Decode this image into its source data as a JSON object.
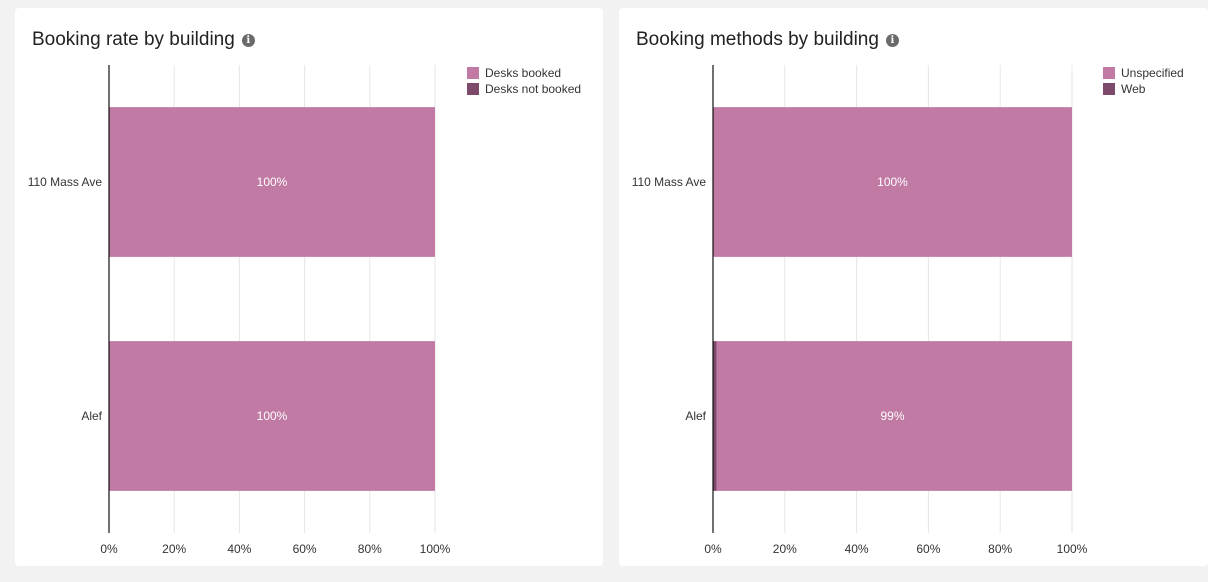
{
  "colors": {
    "primary": "#c07aa3",
    "secondary": "#7e4a6b",
    "grid": "#e6e6e6",
    "axis": "#111111"
  },
  "chart_data": [
    {
      "type": "bar",
      "orientation": "horizontal",
      "stacked": true,
      "title": "Booking rate by building",
      "categories": [
        "110 Mass Ave",
        "Alef"
      ],
      "series": [
        {
          "name": "Desks booked",
          "values": [
            100,
            100
          ],
          "color": "#c07aa3"
        },
        {
          "name": "Desks not booked",
          "values": [
            0,
            0
          ],
          "color": "#7e4a6b"
        }
      ],
      "data_labels": [
        "100%",
        "100%"
      ],
      "xlim": [
        0,
        100
      ],
      "x_ticks": [
        "0%",
        "20%",
        "40%",
        "60%",
        "80%",
        "100%"
      ],
      "grid": true,
      "legend_position": "top-right"
    },
    {
      "type": "bar",
      "orientation": "horizontal",
      "stacked": true,
      "title": "Booking methods by building",
      "categories": [
        "110 Mass Ave",
        "Alef"
      ],
      "series": [
        {
          "name": "Unspecified",
          "values": [
            100,
            99
          ],
          "color": "#c07aa3"
        },
        {
          "name": "Web",
          "values": [
            0,
            1
          ],
          "color": "#7e4a6b"
        }
      ],
      "data_labels": [
        "100%",
        "99%"
      ],
      "xlim": [
        0,
        100
      ],
      "x_ticks": [
        "0%",
        "20%",
        "40%",
        "60%",
        "80%",
        "100%"
      ],
      "grid": true,
      "legend_position": "top-right"
    }
  ]
}
